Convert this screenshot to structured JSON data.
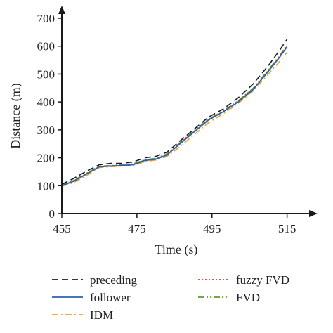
{
  "chart_data": {
    "type": "line",
    "xlabel": "Time (s)",
    "ylabel": "Distance (m)",
    "xlim": [
      455,
      519
    ],
    "ylim": [
      0,
      700
    ],
    "xticks": [
      455,
      475,
      495,
      515
    ],
    "yticks": [
      0,
      100,
      200,
      300,
      400,
      500,
      600,
      700
    ],
    "grid": false,
    "legend_position": "bottom",
    "series": [
      {
        "name": "preceding",
        "color": "#1a1a1a",
        "dash": "dashed",
        "x": [
          455,
          458,
          462,
          465,
          468,
          471,
          474,
          477,
          480,
          483,
          486,
          490,
          494,
          498,
          502,
          506,
          510,
          513,
          515
        ],
        "y": [
          105,
          125,
          155,
          175,
          180,
          180,
          185,
          200,
          205,
          220,
          255,
          300,
          345,
          375,
          415,
          465,
          530,
          585,
          625
        ]
      },
      {
        "name": "follower",
        "color": "#2f5fb3",
        "dash": "solid",
        "x": [
          455,
          458,
          462,
          465,
          468,
          471,
          474,
          477,
          480,
          483,
          486,
          490,
          494,
          498,
          502,
          506,
          510,
          513,
          515
        ],
        "y": [
          100,
          115,
          145,
          168,
          170,
          172,
          175,
          190,
          195,
          210,
          245,
          290,
          335,
          365,
          400,
          445,
          510,
          560,
          598
        ]
      },
      {
        "name": "IDM",
        "color": "#f0a020",
        "dash": "dashdot",
        "x": [
          455,
          458,
          462,
          465,
          468,
          471,
          474,
          477,
          480,
          483,
          486,
          490,
          494,
          498,
          502,
          506,
          510,
          513,
          515
        ],
        "y": [
          98,
          110,
          140,
          165,
          168,
          170,
          172,
          186,
          192,
          205,
          235,
          280,
          325,
          358,
          395,
          440,
          500,
          545,
          578
        ]
      },
      {
        "name": "fuzzy FVD",
        "color": "#e03a2a",
        "dash": "dotted",
        "x": [
          455,
          458,
          462,
          465,
          468,
          471,
          474,
          477,
          480,
          483,
          486,
          490,
          494,
          498,
          502,
          506,
          510,
          513,
          515
        ],
        "y": [
          101,
          116,
          146,
          168,
          171,
          173,
          176,
          191,
          196,
          212,
          247,
          292,
          336,
          366,
          402,
          447,
          512,
          562,
          600
        ]
      },
      {
        "name": "FVD",
        "color": "#5a9e2a",
        "dash": "dashdotdot",
        "x": [
          455,
          458,
          462,
          465,
          468,
          471,
          474,
          477,
          480,
          483,
          486,
          490,
          494,
          498,
          502,
          506,
          510,
          513,
          515
        ],
        "y": [
          102,
          118,
          148,
          170,
          172,
          175,
          178,
          193,
          198,
          214,
          249,
          294,
          338,
          368,
          405,
          450,
          515,
          566,
          605
        ]
      }
    ]
  }
}
